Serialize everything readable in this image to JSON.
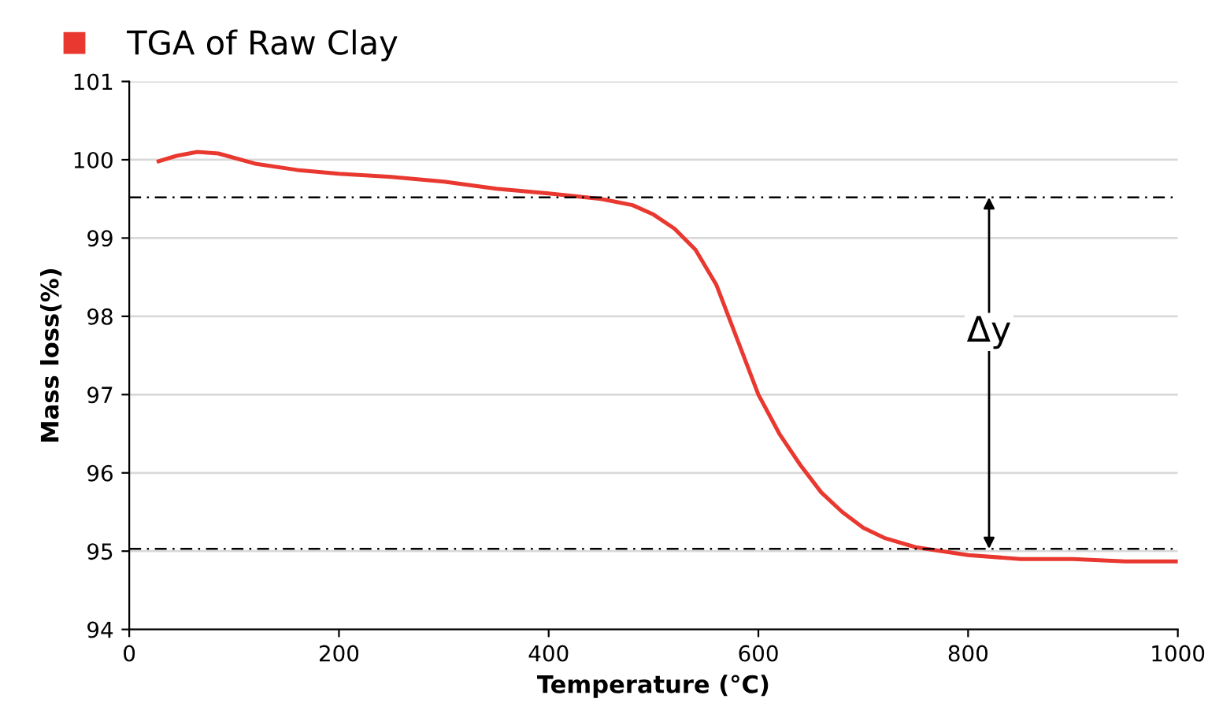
{
  "chart_data": {
    "type": "line",
    "xlabel": "Temperature (°C)",
    "ylabel": "Mass loss(%)",
    "x": [
      28,
      45,
      65,
      85,
      120,
      160,
      200,
      250,
      300,
      350,
      400,
      450,
      480,
      500,
      520,
      540,
      560,
      580,
      600,
      620,
      640,
      660,
      680,
      700,
      720,
      750,
      800,
      850,
      900,
      950,
      1000
    ],
    "series": [
      {
        "name": "TGA of Raw Clay",
        "color": "#e8382f",
        "values": [
          99.98,
          100.05,
          100.1,
          100.08,
          99.95,
          99.87,
          99.82,
          99.78,
          99.72,
          99.63,
          99.57,
          99.5,
          99.42,
          99.3,
          99.12,
          98.85,
          98.4,
          97.7,
          97.0,
          96.5,
          96.1,
          95.75,
          95.5,
          95.3,
          95.17,
          95.05,
          94.95,
          94.9,
          94.9,
          94.87,
          94.87
        ]
      }
    ],
    "xlim": [
      0,
      1000
    ],
    "xticks": [
      0,
      200,
      400,
      600,
      800,
      1000
    ],
    "ylim": [
      94,
      101
    ],
    "yticks": [
      94,
      95,
      96,
      97,
      98,
      99,
      100,
      101
    ],
    "grid": "y",
    "legend": "top left",
    "marker": "none",
    "line_style": "solid",
    "ref_lines": [
      {
        "axis": "y",
        "value": 99.52,
        "color": "#000000",
        "line_style": "dashed"
      },
      {
        "axis": "y",
        "value": 95.03,
        "color": "#000000",
        "line_style": "dashed"
      }
    ],
    "annotations": [
      {
        "text": "Δy",
        "x": 820,
        "y": 97.8
      }
    ]
  }
}
